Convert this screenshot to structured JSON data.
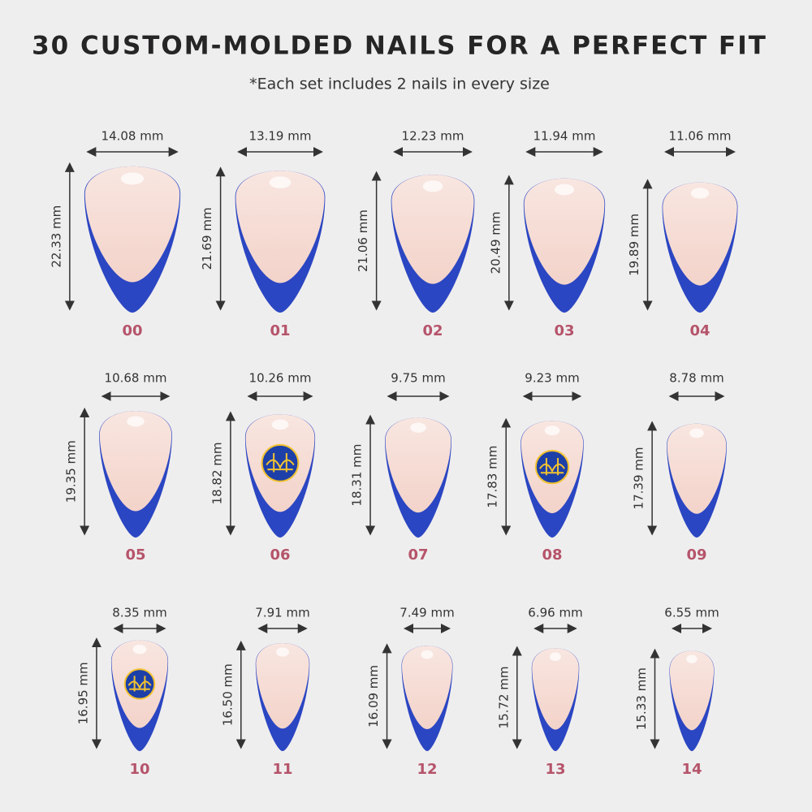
{
  "title": "30 CUSTOM-MOLDED NAILS FOR A PERFECT FIT",
  "subtitle": "*Each set includes 2 nails in every size",
  "rows": [
    [
      {
        "id": "00",
        "width": {
          "value": 14.08,
          "label": "14.08 mm"
        },
        "length": {
          "value": 22.33,
          "label": "22.33 mm"
        }
      },
      {
        "id": "01",
        "width": {
          "value": 13.19,
          "label": "13.19 mm"
        },
        "length": {
          "value": 21.69,
          "label": "21.69 mm"
        }
      },
      {
        "id": "02",
        "width": {
          "value": 12.23,
          "label": "12.23 mm"
        },
        "length": {
          "value": 21.06,
          "label": "21.06 mm"
        }
      },
      {
        "id": "03",
        "width": {
          "value": 11.94,
          "label": "11.94 mm"
        },
        "length": {
          "value": 20.49,
          "label": "20.49 mm"
        }
      },
      {
        "id": "04",
        "width": {
          "value": 11.06,
          "label": "11.06 mm"
        },
        "length": {
          "value": 19.89,
          "label": "19.89 mm"
        }
      }
    ],
    [
      {
        "id": "05",
        "width": {
          "value": 10.68,
          "label": "10.68 mm"
        },
        "length": {
          "value": 19.35,
          "label": "19.35 mm"
        }
      },
      {
        "id": "06",
        "width": {
          "value": 10.26,
          "label": "10.26 mm"
        },
        "length": {
          "value": 18.82,
          "label": "18.82 mm"
        },
        "logo": true
      },
      {
        "id": "07",
        "width": {
          "value": 9.75,
          "label": "9.75 mm"
        },
        "length": {
          "value": 18.31,
          "label": "18.31 mm"
        }
      },
      {
        "id": "08",
        "width": {
          "value": 9.23,
          "label": "9.23 mm"
        },
        "length": {
          "value": 17.83,
          "label": "17.83 mm"
        },
        "logo": true
      },
      {
        "id": "09",
        "width": {
          "value": 8.78,
          "label": "8.78 mm"
        },
        "length": {
          "value": 17.39,
          "label": "17.39 mm"
        }
      }
    ],
    [
      {
        "id": "10",
        "width": {
          "value": 8.35,
          "label": "8.35 mm"
        },
        "length": {
          "value": 16.95,
          "label": "16.95 mm"
        },
        "logo": true
      },
      {
        "id": "11",
        "width": {
          "value": 7.91,
          "label": "7.91 mm"
        },
        "length": {
          "value": 16.5,
          "label": "16.50 mm"
        }
      },
      {
        "id": "12",
        "width": {
          "value": 7.49,
          "label": "7.49 mm"
        },
        "length": {
          "value": 16.09,
          "label": "16.09 mm"
        }
      },
      {
        "id": "13",
        "width": {
          "value": 6.96,
          "label": "6.96 mm"
        },
        "length": {
          "value": 15.72,
          "label": "15.72 mm"
        }
      },
      {
        "id": "14",
        "width": {
          "value": 6.55,
          "label": "6.55 mm"
        },
        "length": {
          "value": 15.33,
          "label": "15.33 mm"
        }
      }
    ]
  ]
}
